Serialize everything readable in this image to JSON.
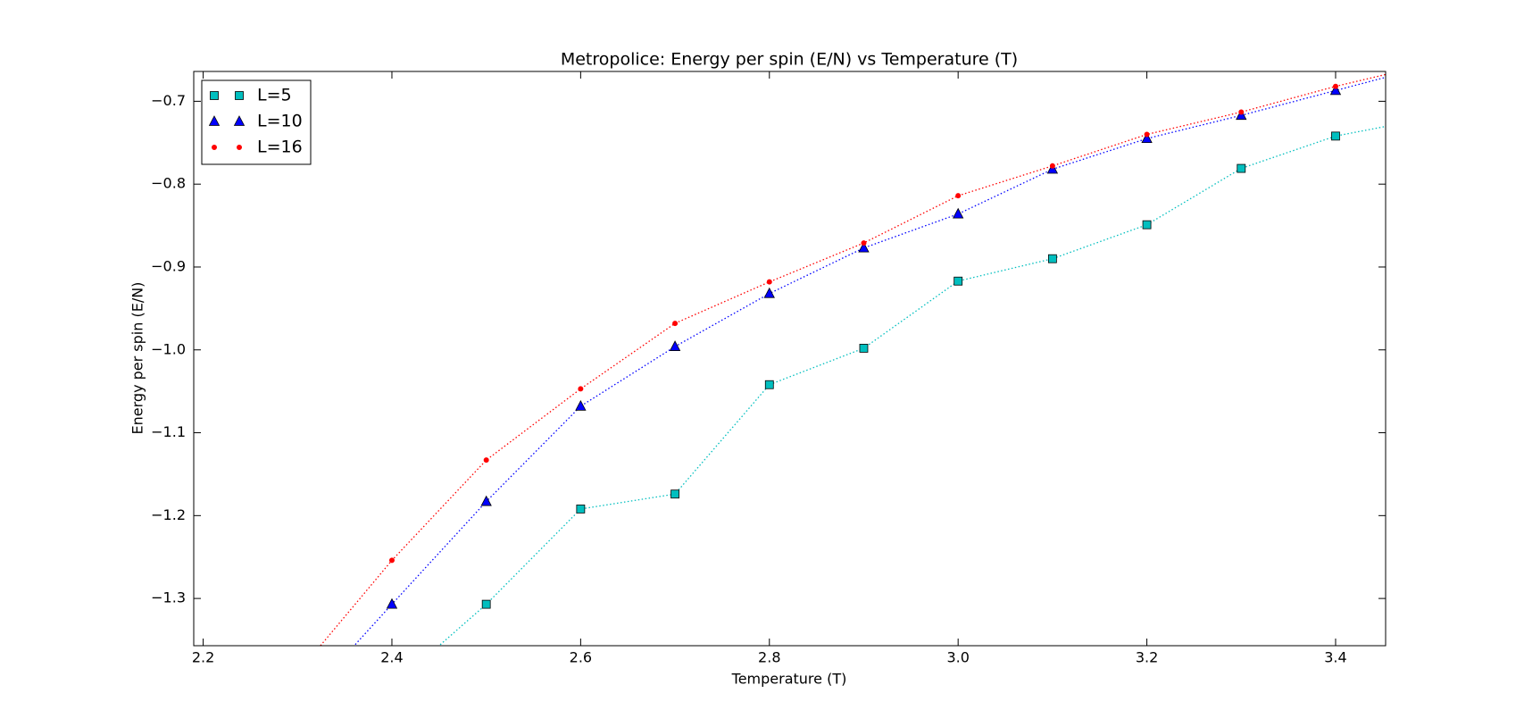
{
  "chart_data": {
    "type": "line",
    "title": "Metropolice: Energy per spin (E/N) vs Temperature (T)",
    "x_label": "Temperature (T)",
    "y_label": "Energy per spin (E/N)",
    "xlim": [
      2.19,
      3.453
    ],
    "ylim": [
      -1.357,
      -0.664
    ],
    "xticks": [
      2.2,
      2.4,
      2.6,
      {
        "value": 2.8,
        "label": "2.8"
      },
      {
        "value": 3.0,
        "label": "3.0"
      },
      3.2,
      3.4
    ],
    "yticks": [
      {
        "value": -0.7,
        "label": "−0.7"
      },
      {
        "value": -0.8,
        "label": "−0.8"
      },
      {
        "value": -0.9,
        "label": "−0.9"
      },
      {
        "value": -1.0,
        "label": "−1.0"
      },
      {
        "value": -1.1,
        "label": "−1.1"
      },
      {
        "value": -1.2,
        "label": "−1.2"
      },
      {
        "value": -1.3,
        "label": "−1.3"
      }
    ],
    "legend": "upper left",
    "series": [
      {
        "name": "L=5",
        "color": "#00bfbf",
        "marker": "square",
        "x": [
          2.4,
          2.5,
          2.6,
          2.7,
          2.8,
          2.9,
          3.0,
          3.1,
          3.2,
          3.3,
          3.4,
          3.5
        ],
        "values": [
          -1.407,
          -1.307,
          -1.192,
          -1.174,
          -1.042,
          -0.998,
          -0.917,
          -0.89,
          -0.849,
          -0.781,
          -0.742,
          -0.72
        ]
      },
      {
        "name": "L=10",
        "color": "#0000ff",
        "marker": "triangle",
        "x": [
          2.3,
          2.4,
          2.5,
          2.6,
          2.7,
          2.8,
          2.9,
          3.0,
          3.1,
          3.2,
          3.3,
          3.4,
          3.5
        ],
        "values": [
          -1.432,
          -1.307,
          -1.183,
          -1.068,
          -0.996,
          -0.932,
          -0.877,
          -0.836,
          -0.782,
          -0.745,
          -0.717,
          -0.687,
          -0.657
        ]
      },
      {
        "name": "L=16",
        "color": "#ff0000",
        "marker": "dot",
        "x": [
          2.3,
          2.4,
          2.5,
          2.6,
          2.7,
          2.8,
          2.9,
          3.0,
          3.1,
          3.2,
          3.3,
          3.4,
          3.5
        ],
        "values": [
          -1.39,
          -1.254,
          -1.133,
          -1.047,
          -0.968,
          -0.918,
          -0.871,
          -0.814,
          -0.778,
          -0.74,
          -0.713,
          -0.682,
          -0.655
        ]
      }
    ]
  }
}
